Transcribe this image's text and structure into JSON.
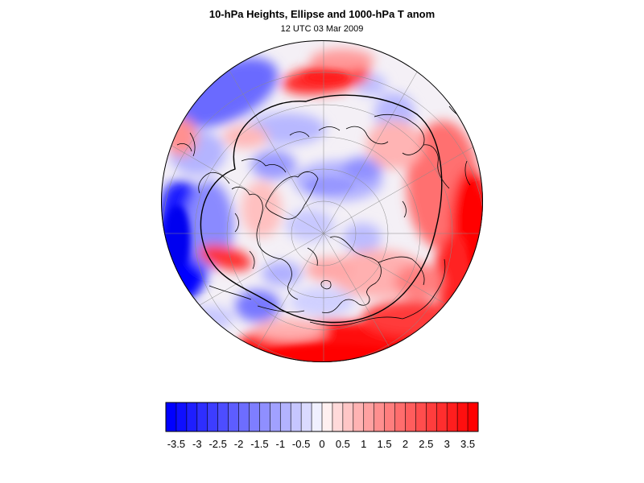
{
  "figure": {
    "title": "10-hPa Heights, Ellipse and 1000-hPa T anom",
    "subtitle": "12 UTC 03 Mar 2009"
  },
  "map": {
    "projection": "orthographic-north-pole",
    "field": "1000-hPa temperature anomaly",
    "overlays": [
      "coastlines",
      "graticule",
      "10-hPa height contour ellipse"
    ],
    "colors": {
      "cold": "#0000ff",
      "neutral": "#ffffff",
      "warm": "#ff0000",
      "lines": "#000000"
    }
  },
  "colorbar": {
    "orientation": "horizontal",
    "min": -3.75,
    "max": 3.75,
    "step": 0.25,
    "tick_labels": [
      "-3.5",
      "-3",
      "-2.5",
      "-2",
      "-1.5",
      "-1",
      "-0.5",
      "0",
      "0.5",
      "1",
      "1.5",
      "2",
      "2.5",
      "3",
      "3.5"
    ],
    "tick_values": [
      -3.5,
      -3,
      -2.5,
      -2,
      -1.5,
      -1,
      -0.5,
      0,
      0.5,
      1,
      1.5,
      2,
      2.5,
      3,
      3.5
    ]
  }
}
